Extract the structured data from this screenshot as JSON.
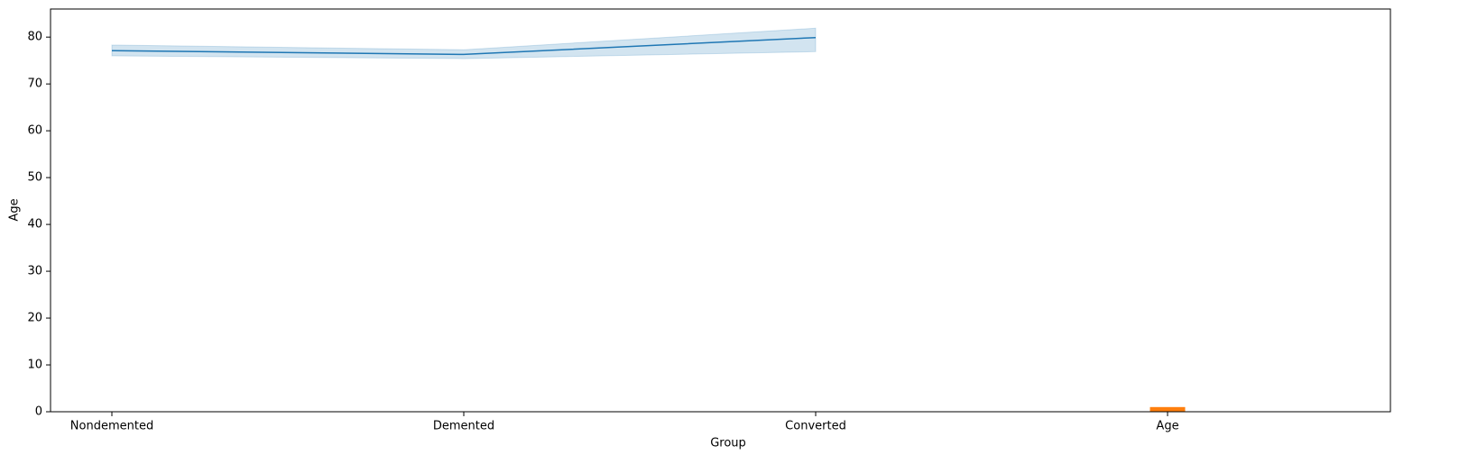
{
  "chart_data": {
    "type": "line",
    "x_label": "Group",
    "y_label": "Age",
    "categories": [
      "Nondemented",
      "Demented",
      "Converted",
      "Age"
    ],
    "ylim": [
      0,
      86
    ],
    "yticks": [
      0,
      10,
      20,
      30,
      40,
      50,
      60,
      70,
      80
    ],
    "series": [
      {
        "type": "line",
        "color": "#1f77b4",
        "values": [
          77.1,
          76.3,
          79.9,
          null
        ],
        "ci_lower": [
          76.0,
          75.4,
          76.9,
          null
        ],
        "ci_upper": [
          78.3,
          77.3,
          81.9,
          null
        ]
      },
      {
        "type": "bar",
        "color": "#ff7f0e",
        "values": [
          null,
          null,
          null,
          1
        ]
      }
    ]
  }
}
